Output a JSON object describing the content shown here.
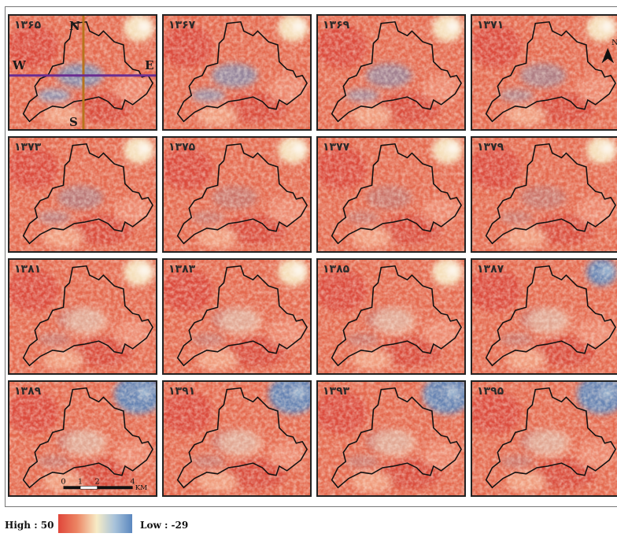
{
  "panels": [
    {
      "year": "۱۳۶۵"
    },
    {
      "year": "۱۳۶۷"
    },
    {
      "year": "۱۳۶۹"
    },
    {
      "year": "۱۳۷۱"
    },
    {
      "year": "۱۳۷۳"
    },
    {
      "year": "۱۳۷۵"
    },
    {
      "year": "۱۳۷۷"
    },
    {
      "year": "۱۳۷۹"
    },
    {
      "year": "۱۳۸۱"
    },
    {
      "year": "۱۳۸۳"
    },
    {
      "year": "۱۳۸۵"
    },
    {
      "year": "۱۳۸۷"
    },
    {
      "year": "۱۳۸۹"
    },
    {
      "year": "۱۳۹۱"
    },
    {
      "year": "۱۳۹۳"
    },
    {
      "year": "۱۳۹۵"
    }
  ],
  "directions": {
    "north": "N",
    "south": "S",
    "west": "W",
    "east": "E"
  },
  "north_arrow_label": "N",
  "scale_bar": {
    "ticks": [
      "0",
      "1",
      "2",
      "4"
    ],
    "unit": "KM"
  },
  "legend": {
    "high_label": "High : 50",
    "low_label": "Low : -29"
  },
  "colors": {
    "high": "#e0463a",
    "mid": "#f7ecc6",
    "low": "#5a87bf",
    "boundary": "#111111",
    "ns_transect": "#b8741c",
    "we_transect": "#6a2c91"
  }
}
